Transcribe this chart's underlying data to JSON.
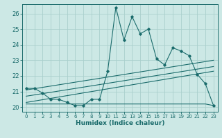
{
  "xlabel": "Humidex (Indice chaleur)",
  "ylabel": "",
  "bg_color": "#cce8e5",
  "grid_color": "#aacfcc",
  "line_color": "#1a6b6b",
  "xlim": [
    -0.5,
    23.5
  ],
  "ylim": [
    19.7,
    26.6
  ],
  "xticks": [
    0,
    1,
    2,
    3,
    4,
    5,
    6,
    7,
    8,
    9,
    10,
    11,
    12,
    13,
    14,
    15,
    16,
    17,
    18,
    19,
    20,
    21,
    22,
    23
  ],
  "yticks": [
    20,
    21,
    22,
    23,
    24,
    25,
    26
  ],
  "line1_x": [
    0,
    1,
    2,
    3,
    4,
    5,
    6,
    7,
    8,
    9,
    10,
    11,
    12,
    13,
    14,
    15,
    16,
    17,
    18,
    19,
    20,
    21,
    22,
    23
  ],
  "line1_y": [
    21.2,
    21.2,
    20.9,
    20.5,
    20.5,
    20.3,
    20.1,
    20.1,
    20.5,
    20.5,
    22.3,
    26.4,
    24.3,
    25.8,
    24.7,
    25.0,
    23.1,
    22.7,
    23.8,
    23.6,
    23.3,
    22.1,
    21.5,
    20.1
  ],
  "flat_x": [
    0,
    1,
    2,
    3,
    4,
    5,
    6,
    7,
    8,
    9,
    10,
    11,
    12,
    13,
    14,
    15,
    16,
    17,
    18,
    19,
    20,
    21,
    22,
    23
  ],
  "flat_y": [
    20.2,
    20.2,
    20.2,
    20.2,
    20.2,
    20.2,
    20.2,
    20.2,
    20.2,
    20.2,
    20.2,
    20.2,
    20.2,
    20.2,
    20.2,
    20.2,
    20.2,
    20.2,
    20.2,
    20.2,
    20.2,
    20.2,
    20.2,
    20.1
  ],
  "trend1_x": [
    0,
    23
  ],
  "trend1_y": [
    21.1,
    23.0
  ],
  "trend2_x": [
    0,
    23
  ],
  "trend2_y": [
    20.7,
    22.6
  ],
  "trend3_x": [
    0,
    23
  ],
  "trend3_y": [
    20.3,
    22.3
  ]
}
